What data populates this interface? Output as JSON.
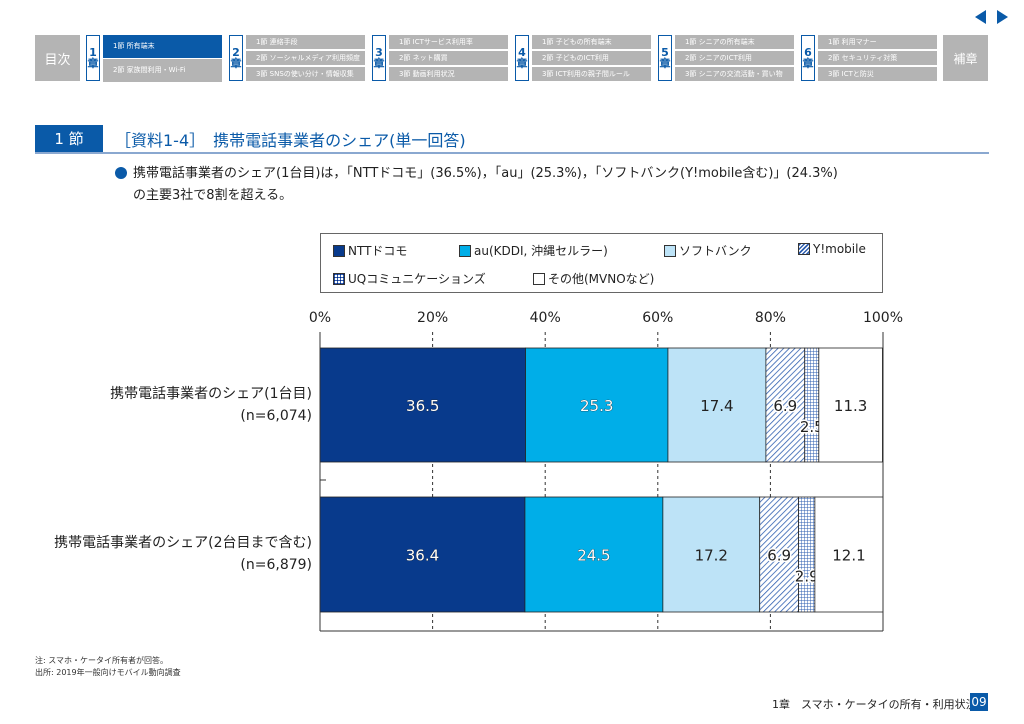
{
  "nav": {
    "toc": "目次",
    "appendix": "補章",
    "chapters": [
      {
        "num": "1",
        "kanji": "章",
        "sections": [
          "1節 所有端末",
          "2節 家族間利用・Wi-Fi"
        ]
      },
      {
        "num": "2",
        "kanji": "章",
        "sections": [
          "1節 連絡手段",
          "2節 ソーシャルメディア利用頻度",
          "3節 SNSの使い分け・情報収集"
        ]
      },
      {
        "num": "3",
        "kanji": "章",
        "sections": [
          "1節 ICTサービス利用率",
          "2節 ネット購買",
          "3節 動画利用状況"
        ]
      },
      {
        "num": "4",
        "kanji": "章",
        "sections": [
          "1節 子どもの所有端末",
          "2節 子どものICT利用",
          "3節 ICT利用の親子間ルール"
        ]
      },
      {
        "num": "5",
        "kanji": "章",
        "sections": [
          "1節 シニアの所有端末",
          "2節 シニアのICT利用",
          "3節 シニアの交流活動・買い物"
        ]
      },
      {
        "num": "6",
        "kanji": "章",
        "sections": [
          "1節 利用マナー",
          "2節 セキュリティ対策",
          "3節 ICTと防災"
        ]
      }
    ],
    "accent": "#0a5aa8"
  },
  "header": {
    "section_badge": "1 節",
    "title": "［資料1-4］　携帯電話事業者のシェア(単一回答)"
  },
  "lead": {
    "line1": "携帯電話事業者のシェア(1台目)は，「NTTドコモ」(36.5%)，「au」(25.3%)，「ソフトバンク(Y!mobile含む)」(24.3%)",
    "line2": "の主要3社で8割を超える。"
  },
  "chart_data": {
    "type": "bar",
    "orientation": "horizontal-stacked-100",
    "categories": [
      "携帯電話事業者のシェア(1台目)\n(n=6,074)",
      "携帯電話事業者のシェア(2台目まで含む)\n(n=6,879)"
    ],
    "category_lines": [
      [
        "携帯電話事業者のシェア(1台目)",
        "(n=6,074)"
      ],
      [
        "携帯電話事業者のシェア(2台目まで含む)",
        "(n=6,879)"
      ]
    ],
    "series": [
      {
        "name": "NTTドコモ",
        "values": [
          36.5,
          36.4
        ],
        "color": "#083a8c",
        "pattern": "solid"
      },
      {
        "name": "au(KDDI, 沖縄セルラー)",
        "values": [
          25.3,
          24.5
        ],
        "color": "#00aee8",
        "pattern": "solid"
      },
      {
        "name": "ソフトバンク",
        "values": [
          17.4,
          17.2
        ],
        "color": "#bde3f7",
        "pattern": "solid"
      },
      {
        "name": "Y!mobile",
        "values": [
          6.9,
          6.9
        ],
        "color": "#2f5fb0",
        "pattern": "diagonal"
      },
      {
        "name": "UQコミュニケーションズ",
        "values": [
          2.5,
          2.9
        ],
        "color": "#2f5fb0",
        "pattern": "grid"
      },
      {
        "name": "その他(MVNOなど)",
        "values": [
          11.3,
          12.1
        ],
        "color": "#ffffff",
        "pattern": "solid"
      }
    ],
    "xlim": [
      0,
      100
    ],
    "xticks": [
      "0%",
      "20%",
      "40%",
      "60%",
      "80%",
      "100%"
    ],
    "grid": "dashed vertical",
    "legend": "top"
  },
  "notes": {
    "note": "注: スマホ・ケータイ所有者が回答。",
    "source": "出所: 2019年一般向けモバイル動向調査"
  },
  "footer": {
    "chapter": "1章　スマホ・ケータイの所有・利用状況",
    "page": "09"
  }
}
